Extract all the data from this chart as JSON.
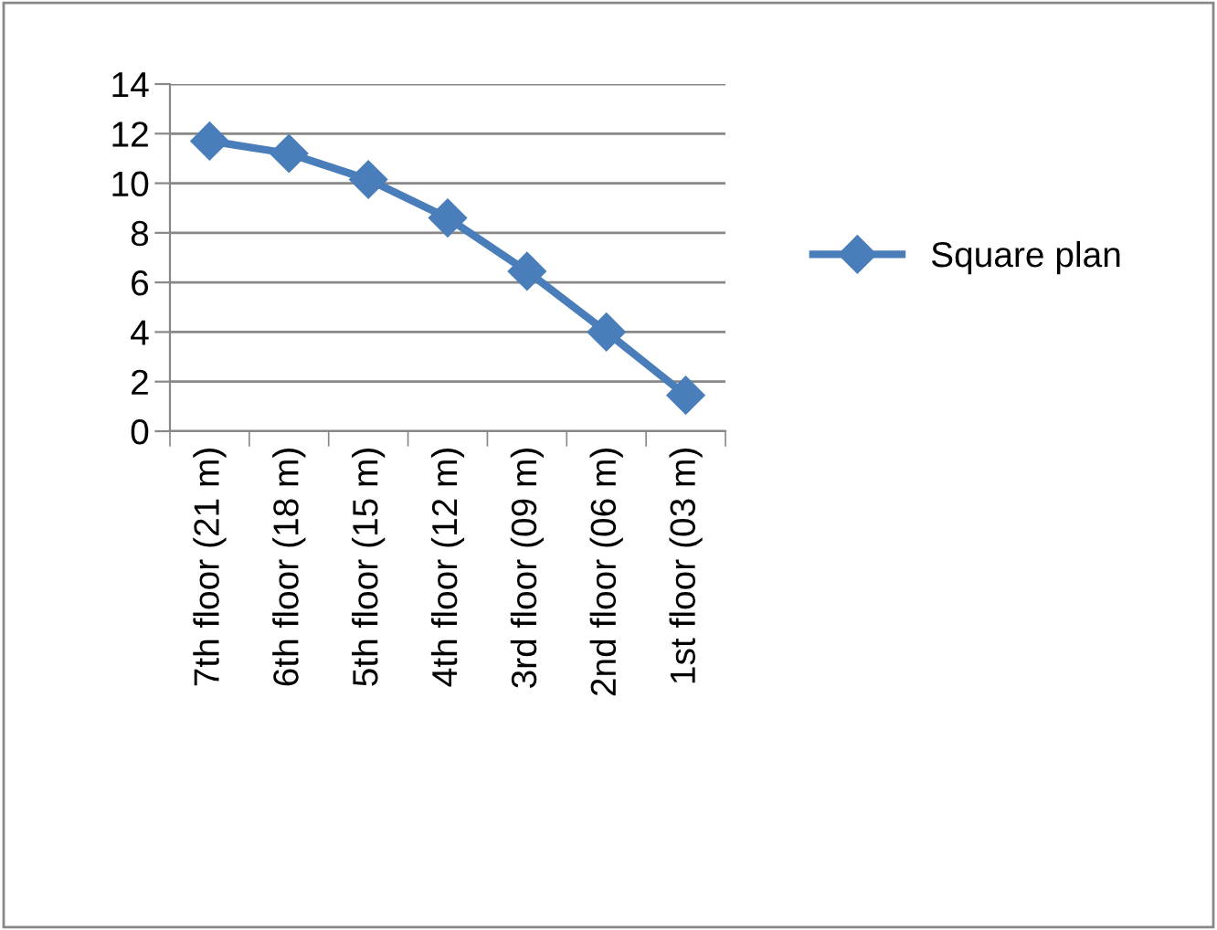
{
  "chart_data": {
    "type": "line",
    "categories": [
      "7th floor (21 m)",
      "6th floor (18 m)",
      "5th floor (15 m)",
      "4th floor (12 m)",
      "3rd floor (09 m)",
      "2nd floor (06 m)",
      "1st floor (03 m)"
    ],
    "series": [
      {
        "name": "Square plan",
        "color": "#4a7ebb",
        "values": [
          11.7,
          11.2,
          10.15,
          8.6,
          6.45,
          4.0,
          1.45
        ]
      }
    ],
    "ylim": [
      0,
      14
    ],
    "yticks": [
      0,
      2,
      4,
      6,
      8,
      10,
      12,
      14
    ],
    "grid": "y",
    "legend": "right",
    "marker": "diamond",
    "line_style": "solid"
  }
}
